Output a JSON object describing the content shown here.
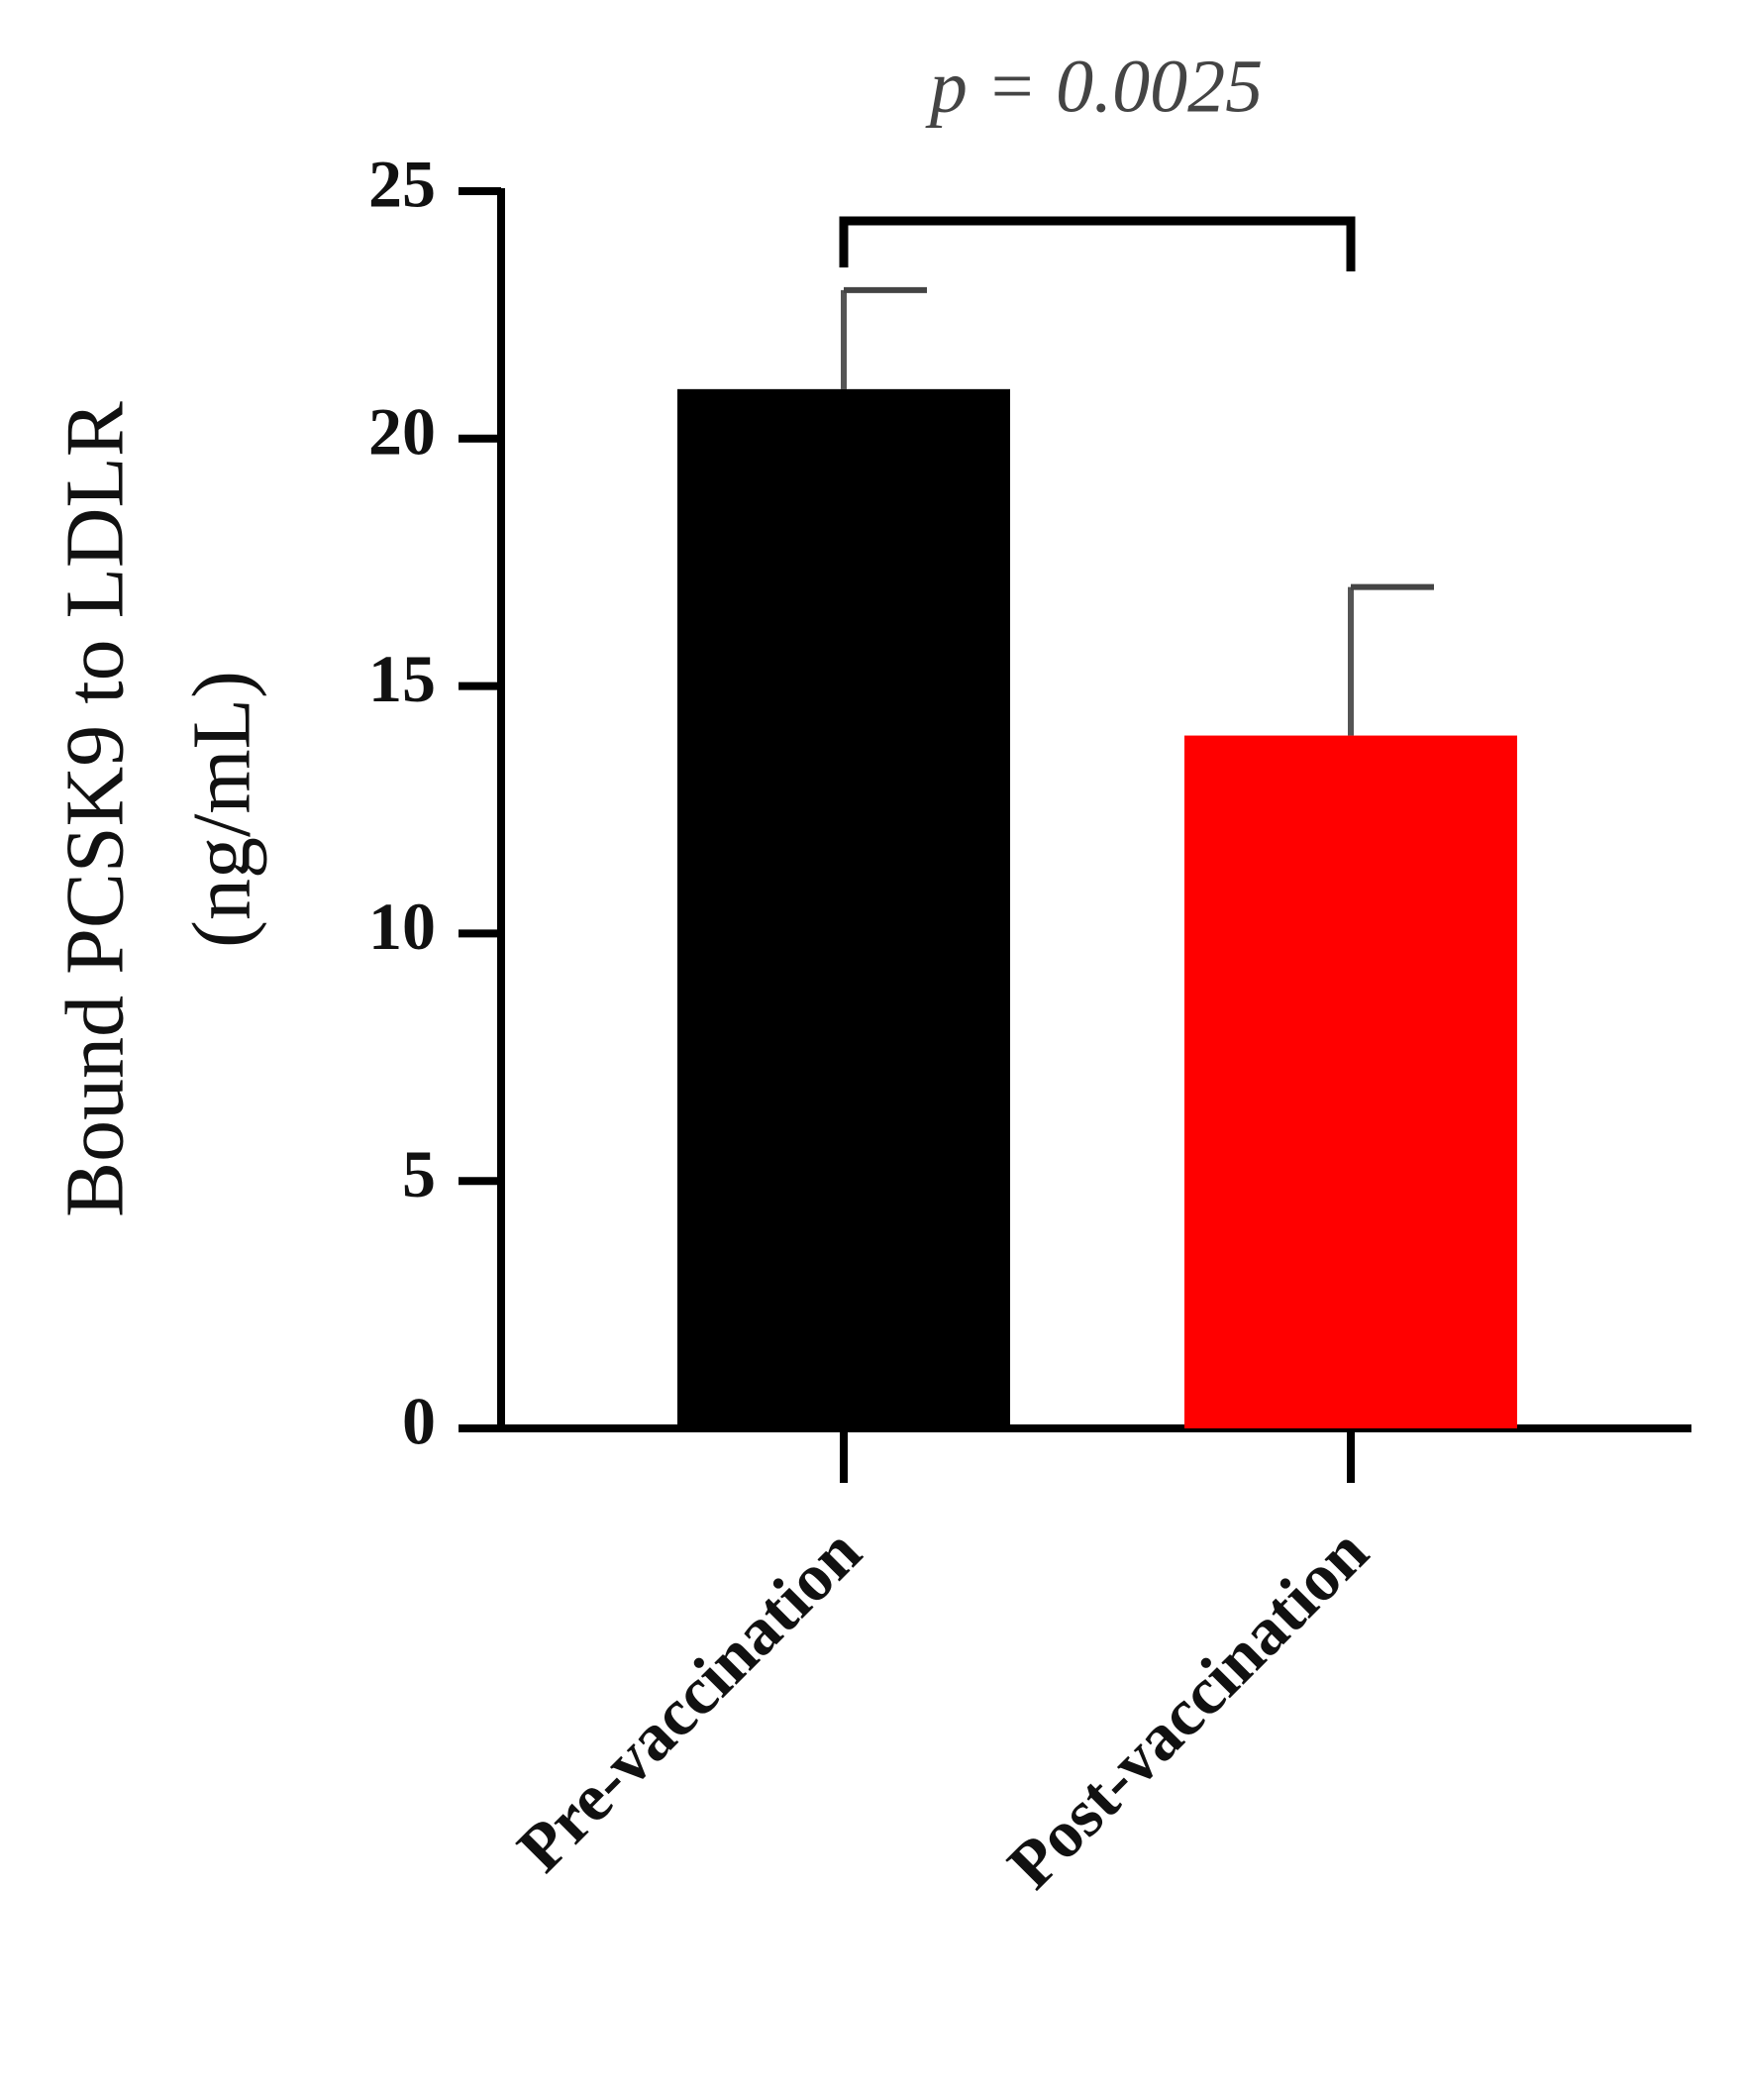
{
  "chart_data": {
    "type": "bar",
    "ylabel": [
      "Bound PCSK9 to LDLR",
      "(ng/mL)"
    ],
    "categories": [
      "Pre-vaccination",
      "Post-vaccination"
    ],
    "values": [
      21,
      14
    ],
    "errors": [
      2,
      3
    ],
    "colors": [
      "#000000",
      "#ff0000"
    ],
    "annotation": "p = 0.0025",
    "ylim": [
      0,
      25
    ],
    "yticks": [
      0,
      5,
      10,
      15,
      20,
      25
    ],
    "grid": false
  }
}
